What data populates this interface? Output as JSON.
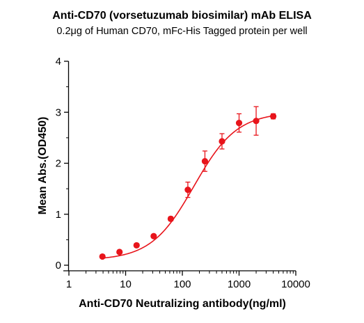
{
  "chart_data": {
    "type": "scatter",
    "title": "Anti-CD70 (vorsetuzumab biosimilar) mAb ELISA",
    "subtitle": "0.2μg of Human CD70, mFc-His Tagged protein per well",
    "xlabel": "Anti-CD70 Neutralizing antibody(ng/ml)",
    "ylabel": "Mean Abs.(OD450)",
    "x_scale": "log",
    "xlim": [
      1,
      10000
    ],
    "ylim": [
      0,
      4
    ],
    "x_ticks": [
      1,
      10,
      100,
      1000,
      10000
    ],
    "x_tick_labels": [
      "1",
      "10",
      "100",
      "1000",
      "10000"
    ],
    "y_ticks": [
      0,
      1,
      2,
      3,
      4
    ],
    "y_tick_labels": [
      "0",
      "1",
      "2",
      "3",
      "4"
    ],
    "grid": false,
    "color": "#e8141b",
    "series": [
      {
        "x": [
          3.9,
          7.8,
          15.6,
          31.25,
          62.5,
          125,
          250,
          500,
          1000,
          2000,
          4000
        ],
        "y": [
          0.17,
          0.26,
          0.39,
          0.57,
          0.91,
          1.48,
          2.04,
          2.43,
          2.79,
          2.83,
          2.92
        ],
        "err": [
          0.02,
          0.02,
          0.03,
          0.03,
          0.04,
          0.15,
          0.2,
          0.15,
          0.18,
          0.28,
          0.05
        ],
        "fit": "4PL"
      }
    ]
  }
}
